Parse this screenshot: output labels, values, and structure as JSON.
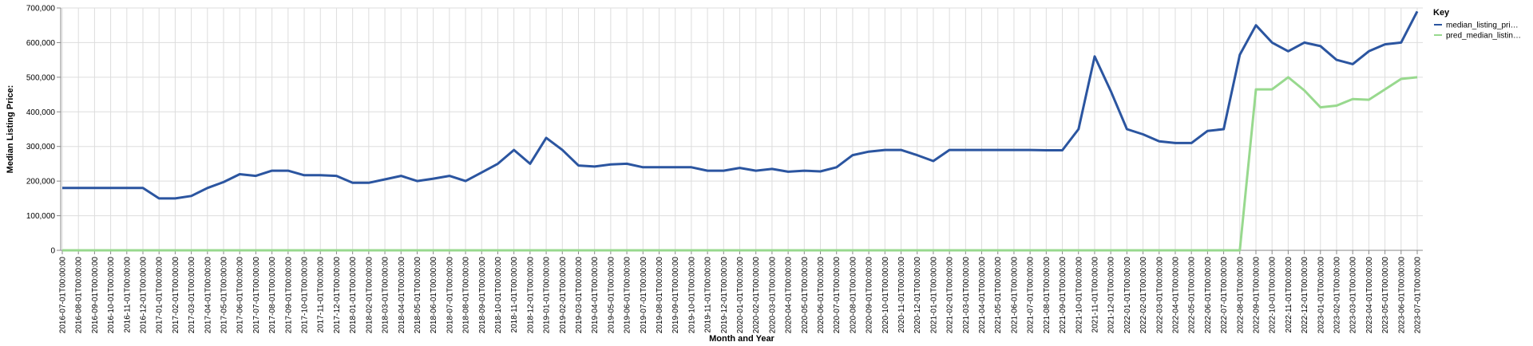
{
  "chart_data": {
    "type": "line",
    "xlabel": "Month and Year",
    "ylabel": "Median Listing Price:",
    "ylim": [
      0,
      700000
    ],
    "yticks": [
      0,
      100000,
      200000,
      300000,
      400000,
      500000,
      600000,
      700000
    ],
    "ytick_labels": [
      "0",
      "100,000",
      "200,000",
      "300,000",
      "400,000",
      "500,000",
      "600,000",
      "700,000"
    ],
    "grid": true,
    "legend": {
      "title": "Key",
      "placement": "top-right"
    },
    "x": [
      "2016-07-01T00:00:00",
      "2016-08-01T00:00:00",
      "2016-09-01T00:00:00",
      "2016-10-01T00:00:00",
      "2016-11-01T00:00:00",
      "2016-12-01T00:00:00",
      "2017-01-01T00:00:00",
      "2017-02-01T00:00:00",
      "2017-03-01T00:00:00",
      "2017-04-01T00:00:00",
      "2017-05-01T00:00:00",
      "2017-06-01T00:00:00",
      "2017-07-01T00:00:00",
      "2017-08-01T00:00:00",
      "2017-09-01T00:00:00",
      "2017-10-01T00:00:00",
      "2017-11-01T00:00:00",
      "2017-12-01T00:00:00",
      "2018-01-01T00:00:00",
      "2018-02-01T00:00:00",
      "2018-03-01T00:00:00",
      "2018-04-01T00:00:00",
      "2018-05-01T00:00:00",
      "2018-06-01T00:00:00",
      "2018-07-01T00:00:00",
      "2018-08-01T00:00:00",
      "2018-09-01T00:00:00",
      "2018-10-01T00:00:00",
      "2018-11-01T00:00:00",
      "2018-12-01T00:00:00",
      "2019-01-01T00:00:00",
      "2019-02-01T00:00:00",
      "2019-03-01T00:00:00",
      "2019-04-01T00:00:00",
      "2019-05-01T00:00:00",
      "2019-06-01T00:00:00",
      "2019-07-01T00:00:00",
      "2019-08-01T00:00:00",
      "2019-09-01T00:00:00",
      "2019-10-01T00:00:00",
      "2019-11-01T00:00:00",
      "2019-12-01T00:00:00",
      "2020-01-01T00:00:00",
      "2020-02-01T00:00:00",
      "2020-03-01T00:00:00",
      "2020-04-01T00:00:00",
      "2020-05-01T00:00:00",
      "2020-06-01T00:00:00",
      "2020-07-01T00:00:00",
      "2020-08-01T00:00:00",
      "2020-09-01T00:00:00",
      "2020-10-01T00:00:00",
      "2020-11-01T00:00:00",
      "2020-12-01T00:00:00",
      "2021-01-01T00:00:00",
      "2021-02-01T00:00:00",
      "2021-03-01T00:00:00",
      "2021-04-01T00:00:00",
      "2021-05-01T00:00:00",
      "2021-06-01T00:00:00",
      "2021-07-01T00:00:00",
      "2021-08-01T00:00:00",
      "2021-09-01T00:00:00",
      "2021-10-01T00:00:00",
      "2021-11-01T00:00:00",
      "2021-12-01T00:00:00",
      "2022-01-01T00:00:00",
      "2022-02-01T00:00:00",
      "2022-03-01T00:00:00",
      "2022-04-01T00:00:00",
      "2022-05-01T00:00:00",
      "2022-06-01T00:00:00",
      "2022-07-01T00:00:00",
      "2022-08-01T00:00:00",
      "2022-09-01T00:00:00",
      "2022-10-01T00:00:00",
      "2022-11-01T00:00:00",
      "2022-12-01T00:00:00",
      "2023-01-01T00:00:00",
      "2023-02-01T00:00:00",
      "2023-03-01T00:00:00",
      "2023-04-01T00:00:00",
      "2023-05-01T00:00:00",
      "2023-06-01T00:00:00",
      "2023-07-01T00:00:00"
    ],
    "series": [
      {
        "name": "median_listing_pri…",
        "color": "#2b55a0",
        "values": [
          180000,
          180000,
          180000,
          180000,
          180000,
          180000,
          150000,
          150000,
          157000,
          180000,
          197000,
          220000,
          215000,
          230000,
          230000,
          217000,
          217000,
          215000,
          195000,
          195000,
          205000,
          215000,
          200000,
          207000,
          215000,
          200000,
          225000,
          250000,
          290000,
          250000,
          325000,
          290000,
          245000,
          242000,
          248000,
          250000,
          240000,
          240000,
          240000,
          240000,
          230000,
          230000,
          238000,
          230000,
          235000,
          227000,
          230000,
          228000,
          240000,
          275000,
          285000,
          290000,
          290000,
          275000,
          258000,
          290000,
          290000,
          290000,
          290000,
          290000,
          290000,
          289000,
          289000,
          350000,
          560000,
          460000,
          350000,
          335000,
          315000,
          310000,
          310000,
          345000,
          350000,
          565000,
          650000,
          600000,
          575000,
          600000,
          590000,
          550000,
          538000,
          575000,
          595000,
          600000,
          690000
        ]
      },
      {
        "name": "pred_median_listin…",
        "color": "#98d98e",
        "values": [
          0,
          0,
          0,
          0,
          0,
          0,
          0,
          0,
          0,
          0,
          0,
          0,
          0,
          0,
          0,
          0,
          0,
          0,
          0,
          0,
          0,
          0,
          0,
          0,
          0,
          0,
          0,
          0,
          0,
          0,
          0,
          0,
          0,
          0,
          0,
          0,
          0,
          0,
          0,
          0,
          0,
          0,
          0,
          0,
          0,
          0,
          0,
          0,
          0,
          0,
          0,
          0,
          0,
          0,
          0,
          0,
          0,
          0,
          0,
          0,
          0,
          0,
          0,
          0,
          0,
          0,
          0,
          0,
          0,
          0,
          0,
          0,
          0,
          0,
          465000,
          465000,
          500000,
          462000,
          413000,
          418000,
          437000,
          435000,
          465000,
          495000,
          500000
        ]
      }
    ]
  }
}
